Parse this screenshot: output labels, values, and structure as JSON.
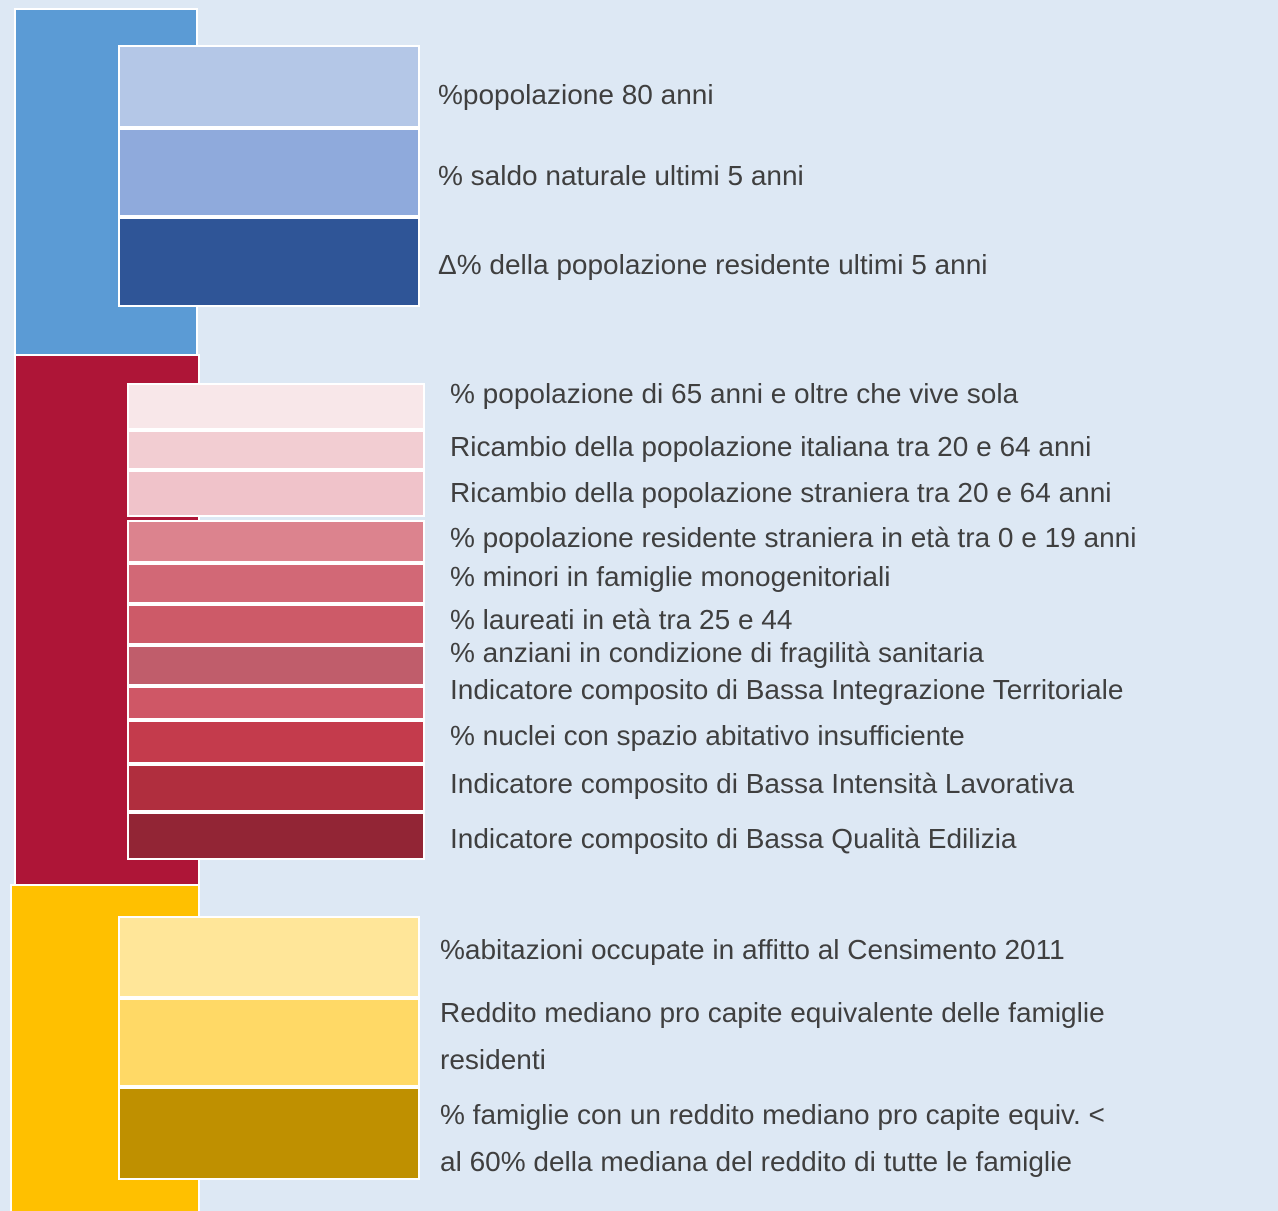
{
  "groups": [
    {
      "items": [
        {
          "label": "%popolazione 80 anni"
        },
        {
          "label": "% saldo naturale ultimi 5 anni"
        },
        {
          "label": "Δ% della popolazione residente ultimi 5 anni"
        }
      ]
    },
    {
      "items": [
        {
          "label": "% popolazione di 65 anni e oltre che vive sola"
        },
        {
          "label": "Ricambio della popolazione italiana tra 20 e 64 anni"
        },
        {
          "label": "Ricambio della popolazione straniera tra 20 e 64 anni"
        },
        {
          "label": "% popolazione residente straniera in età tra 0 e 19 anni"
        },
        {
          "label": "% minori in famiglie monogenitoriali"
        },
        {
          "label": "% laureati in età tra 25 e 44"
        },
        {
          "label": "% anziani in condizione di fragilità sanitaria"
        },
        {
          "label": "Indicatore composito di Bassa Integrazione Territoriale"
        },
        {
          "label": "% nuclei con spazio abitativo insufficiente"
        },
        {
          "label": "Indicatore composito di Bassa Intensità Lavorativa"
        },
        {
          "label": "Indicatore composito di Bassa Qualità Edilizia"
        }
      ]
    },
    {
      "items": [
        {
          "label": "%abitazioni occupate in affitto al Censimento 2011"
        },
        {
          "lines": [
            "Reddito mediano pro capite equivalente delle famiglie",
            "residenti"
          ]
        },
        {
          "lines": [
            "% famiglie con un reddito mediano pro capite equiv. <",
            "al 60% della mediana del reddito di tutte le famiglie"
          ]
        }
      ]
    }
  ]
}
